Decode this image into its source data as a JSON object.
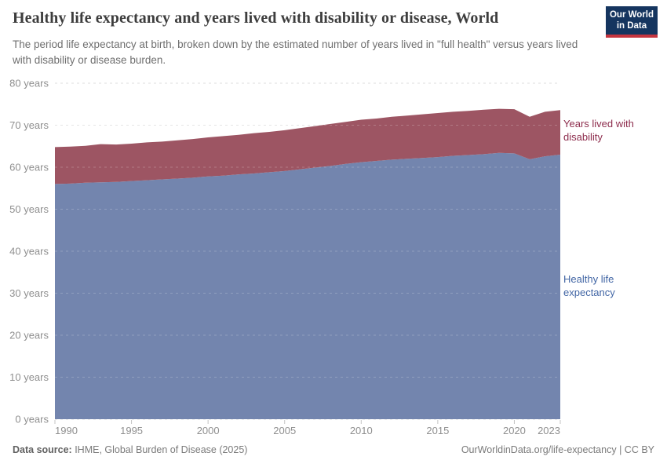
{
  "header": {
    "title": "Healthy life expectancy and years lived with disability or disease, World",
    "subtitle": "The period life expectancy at birth, broken down by the estimated number of years lived in \"full health\" versus years lived with disability or disease burden.",
    "logo": {
      "line1": "Our World",
      "line2": "in Data"
    }
  },
  "footer": {
    "source_label": "Data source:",
    "source_text": " IHME, Global Burden of Disease (2025)",
    "url": "OurWorldinData.org/life-expectancy",
    "license": " | CC BY"
  },
  "chart_data": {
    "type": "area",
    "stacked": true,
    "title": "Healthy life expectancy and years lived with disability or disease, World",
    "xlabel": "",
    "ylabel": "",
    "xlim": [
      1990,
      2023
    ],
    "ylim": [
      0,
      80
    ],
    "grid": "dashed-horizontal",
    "legend_position": "right-edge-labels",
    "y_ticks": [
      0,
      10,
      20,
      30,
      40,
      50,
      60,
      70,
      80
    ],
    "y_tick_suffix": " years",
    "x_ticks": [
      1990,
      1995,
      2000,
      2005,
      2010,
      2015,
      2020,
      2023
    ],
    "x": [
      1990,
      1991,
      1992,
      1993,
      1994,
      1995,
      1996,
      1997,
      1998,
      1999,
      2000,
      2001,
      2002,
      2003,
      2004,
      2005,
      2006,
      2007,
      2008,
      2009,
      2010,
      2011,
      2012,
      2013,
      2014,
      2015,
      2016,
      2017,
      2018,
      2019,
      2020,
      2021,
      2022,
      2023
    ],
    "series": [
      {
        "name": "Healthy life expectancy",
        "color": "#7385ae",
        "label_color": "#4266a5",
        "values": [
          56.0,
          56.1,
          56.3,
          56.4,
          56.5,
          56.7,
          56.9,
          57.1,
          57.3,
          57.5,
          57.8,
          58.0,
          58.3,
          58.5,
          58.8,
          59.1,
          59.5,
          59.9,
          60.3,
          60.8,
          61.2,
          61.5,
          61.8,
          62.0,
          62.2,
          62.4,
          62.7,
          62.9,
          63.1,
          63.4,
          63.3,
          61.9,
          62.6,
          63.0
        ]
      },
      {
        "name": "Years lived with disability",
        "color": "#9d5563",
        "label_color": "#8d2c4c",
        "values": [
          8.8,
          8.8,
          8.8,
          9.1,
          8.9,
          8.9,
          9.0,
          9.0,
          9.1,
          9.2,
          9.3,
          9.4,
          9.4,
          9.6,
          9.6,
          9.7,
          9.8,
          9.9,
          10.0,
          10.0,
          10.1,
          10.1,
          10.2,
          10.3,
          10.4,
          10.5,
          10.5,
          10.5,
          10.6,
          10.5,
          10.5,
          10.1,
          10.6,
          10.6
        ]
      }
    ],
    "colors": {
      "gridline": "#dedede",
      "gridline_over_area": "rgba(255,255,255,0.22)",
      "axis_text": "#8f8f8f",
      "tick_mark": "#c4c4c4"
    }
  }
}
